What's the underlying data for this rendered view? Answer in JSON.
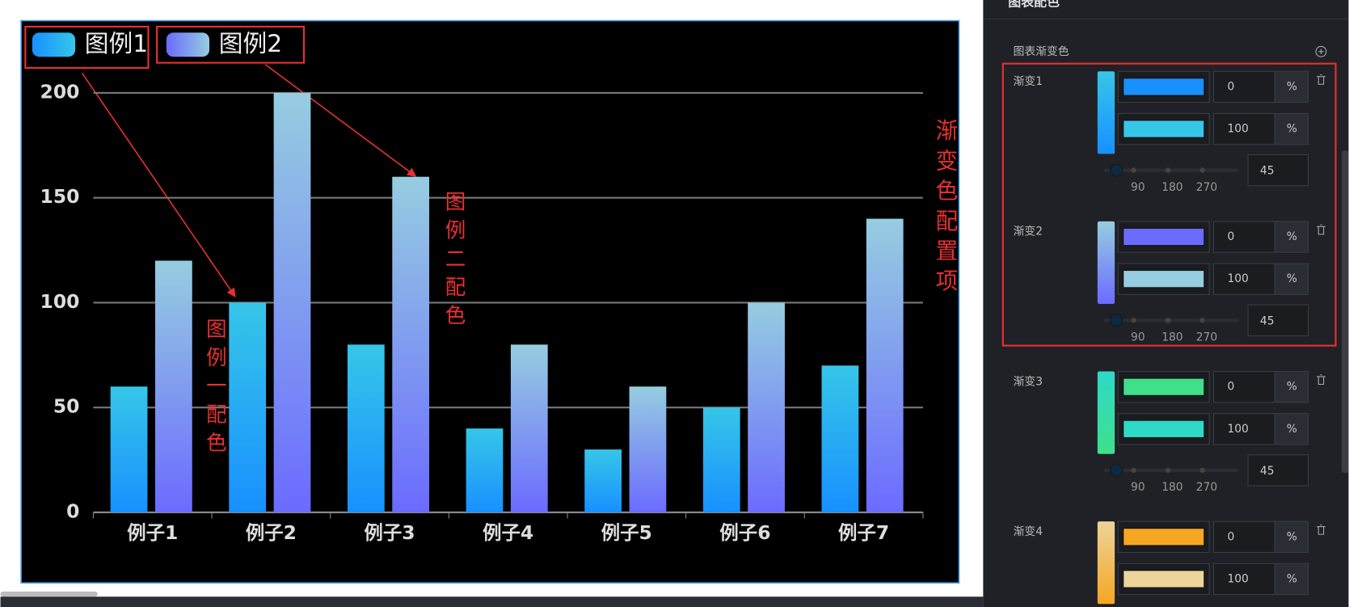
{
  "chart_data": {
    "type": "bar",
    "categories": [
      "例子1",
      "例子2",
      "例子3",
      "例子4",
      "例子5",
      "例子6",
      "例子7"
    ],
    "series": [
      {
        "name": "图例1",
        "color": [
          "#1890ff",
          "#36c6e8"
        ],
        "values": [
          60,
          100,
          80,
          40,
          30,
          50,
          70
        ]
      },
      {
        "name": "图例2",
        "color": [
          "#6b6bff",
          "#96cde0"
        ],
        "values": [
          120,
          200,
          160,
          80,
          60,
          100,
          140
        ]
      }
    ],
    "ylim": [
      0,
      200
    ],
    "yticks": [
      0,
      50,
      100,
      150,
      200
    ],
    "grid": true,
    "annotations": [
      "图例一配色",
      "图例二配色",
      "渐变色配置项"
    ]
  },
  "panel": {
    "section_title": "图表配色",
    "subtitle": "图表渐变色",
    "unit": "%",
    "angle_ticks": [
      90,
      180,
      270
    ],
    "gradients": [
      {
        "label": "渐变1",
        "stops": [
          {
            "color": "#1890ff",
            "position": 0
          },
          {
            "color": "#36c6e8",
            "position": 100
          }
        ],
        "angle": 45
      },
      {
        "label": "渐变2",
        "stops": [
          {
            "color": "#6b6bff",
            "position": 0
          },
          {
            "color": "#96cde0",
            "position": 100
          }
        ],
        "angle": 45
      },
      {
        "label": "渐变3",
        "stops": [
          {
            "color": "#3ee08a",
            "position": 0
          },
          {
            "color": "#2fd9c8",
            "position": 100
          }
        ],
        "angle": 45
      },
      {
        "label": "渐变4",
        "stops": [
          {
            "color": "#f5a623",
            "position": 0
          },
          {
            "color": "#ecd49a",
            "position": 100
          }
        ]
      }
    ]
  }
}
